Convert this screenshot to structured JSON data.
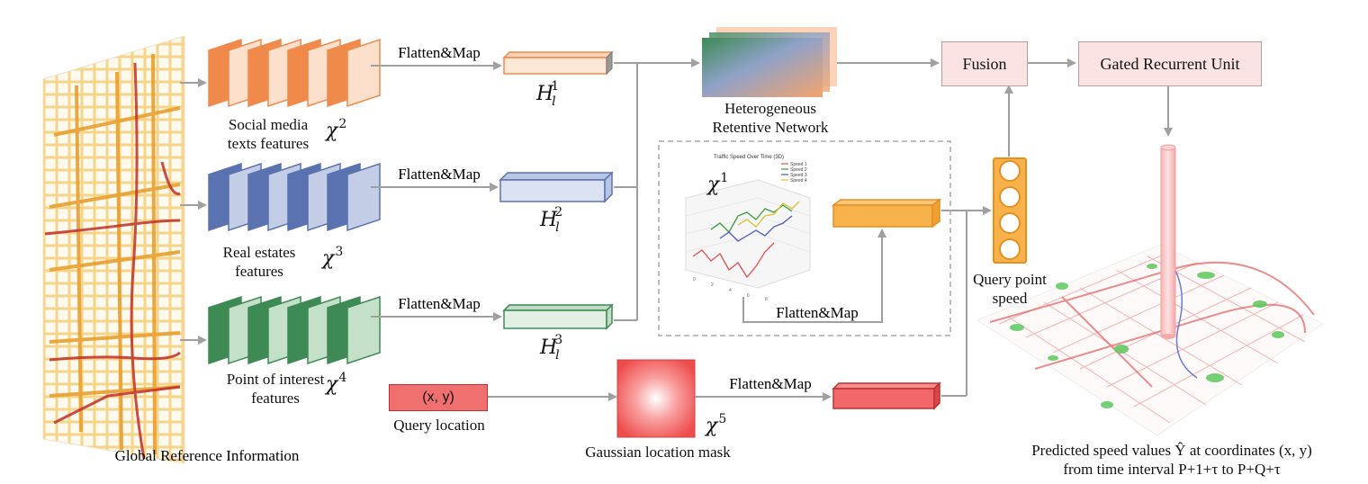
{
  "colors": {
    "social": "#f08a4b",
    "social_light": "#fde0cc",
    "real_estate": "#5a72b0",
    "real_estate_light": "#c3cde6",
    "poi": "#3e8a55",
    "poi_light": "#c4e0c8",
    "arrow": "#a0a0a0",
    "fusion_fill": "#fbe3e3",
    "mask_red": "#f05a5a",
    "speed_bar": "#f7b24c",
    "query_box": "#f07070"
  },
  "global_ref": {
    "label": "Global Reference Information"
  },
  "features": {
    "social": {
      "label_line1": "Social media",
      "label_line2": "texts features",
      "sym": "χ",
      "sup": "2"
    },
    "real_estate": {
      "label_line1": "Real estates",
      "label_line2": "features",
      "sym": "χ",
      "sup": "3"
    },
    "poi": {
      "label_line1": "Point of interest",
      "label_line2": "features",
      "sym": "χ",
      "sup": "4"
    }
  },
  "flatten_map": "Flatten&Map",
  "embeddings": {
    "h1": {
      "sym": "H",
      "sub": "l",
      "sup": "1"
    },
    "h2": {
      "sym": "H",
      "sub": "l",
      "sup": "2"
    },
    "h3": {
      "sym": "H",
      "sub": "l",
      "sup": "3"
    }
  },
  "hrn": {
    "label_line1": "Heterogeneous",
    "label_line2": "Retentive Network"
  },
  "fusion": {
    "label": "Fusion"
  },
  "gru": {
    "label": "Gated Recurrent Unit"
  },
  "speed_chart": {
    "title": "Traffic Speed Over Time (3D)",
    "sym": "χ",
    "sup": "1",
    "legend": [
      "Speed 1",
      "Speed 2",
      "Speed 3",
      "Speed 4"
    ],
    "legend_colors": [
      "#e05050",
      "#3a9a3a",
      "#4a5ac0",
      "#d8c030"
    ]
  },
  "query_point": {
    "label_line1": "Query point",
    "label_line2": "speed"
  },
  "query_location": {
    "value": "(x, y)",
    "label": "Query location"
  },
  "gaussian": {
    "label": "Gaussian location mask",
    "sym": "χ",
    "sup": "5"
  },
  "prediction": {
    "line1": "Predicted speed values Ŷ at coordinates (x, y)",
    "line2": "from time interval P+1+τ to P+Q+τ"
  }
}
